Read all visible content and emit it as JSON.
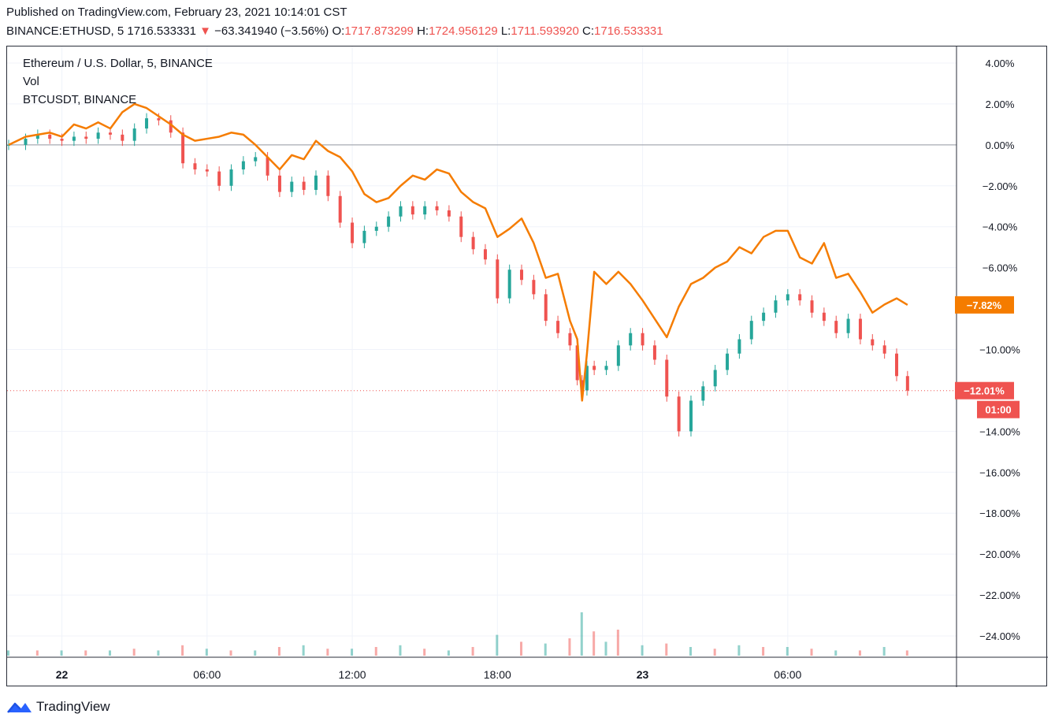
{
  "header": {
    "published": "Published on TradingView.com, February 23, 2021 10:14:01 CST",
    "symbol": "BINANCE:ETHUSD, 5",
    "last": "1716.533331",
    "change": "−63.341940 (−3.56%)",
    "o_label": "O:",
    "o_value": "1717.873299",
    "h_label": "H:",
    "h_value": "1724.956129",
    "l_label": "L:",
    "l_value": "1711.593920",
    "c_label": "C:",
    "c_value": "1716.533331"
  },
  "legend": {
    "main": "Ethereum / U.S. Dollar, 5, BINANCE",
    "vol": "Vol",
    "compare": "BTCUSDT, BINANCE"
  },
  "footer": {
    "brand": "TradingView"
  },
  "colors": {
    "up": "#26a69a",
    "down": "#ef5350",
    "compare_line": "#f57c00",
    "grid": "#f0f3fa",
    "axis_text": "#131722"
  },
  "chart_data": {
    "type": "candlestick",
    "y_unit": "%",
    "ylim": [
      -24.5,
      4.5
    ],
    "y_ticks": [
      "4.00%",
      "2.00%",
      "0.00%",
      "−2.00%",
      "−4.00%",
      "−6.00%",
      "−10.00%",
      "−14.00%",
      "−16.00%",
      "−18.00%",
      "−20.00%",
      "−22.00%",
      "−24.00%"
    ],
    "y_tick_values": [
      4,
      2,
      0,
      -2,
      -4,
      -6,
      -10,
      -14,
      -16,
      -18,
      -20,
      -22,
      -24
    ],
    "x_ticks": [
      "22",
      "06:00",
      "12:00",
      "18:00",
      "23",
      "06:00"
    ],
    "x_tick_hours": [
      0,
      6,
      12,
      18,
      24,
      30
    ],
    "x_range_hours": [
      -2.2,
      35.9
    ],
    "last_hour": 34.95,
    "labels": {
      "eth_last": "−12.01%",
      "countdown": "01:00",
      "btc_last": "−7.82%"
    },
    "series": [
      {
        "name": "Ethereum / U.S. Dollar, 5, BINANCE",
        "kind": "candles",
        "hours": [
          -2.2,
          -1.5,
          -1.0,
          -0.5,
          0.0,
          0.5,
          1.0,
          1.5,
          2.0,
          2.5,
          3.0,
          3.5,
          4.0,
          4.5,
          5.0,
          5.5,
          6.0,
          6.5,
          7.0,
          7.5,
          8.0,
          8.5,
          9.0,
          9.5,
          10.0,
          10.5,
          11.0,
          11.5,
          12.0,
          12.5,
          13.0,
          13.5,
          14.0,
          14.5,
          15.0,
          15.5,
          16.0,
          16.5,
          17.0,
          17.5,
          18.0,
          18.5,
          19.0,
          19.5,
          20.0,
          20.5,
          21.0,
          21.3,
          21.5,
          21.7,
          22.0,
          22.5,
          23.0,
          23.5,
          24.0,
          24.5,
          25.0,
          25.5,
          26.0,
          26.5,
          27.0,
          27.5,
          28.0,
          28.5,
          29.0,
          29.5,
          30.0,
          30.5,
          31.0,
          31.5,
          32.0,
          32.5,
          33.0,
          33.5,
          34.0,
          34.5,
          34.95
        ],
        "values": [
          0.0,
          0.3,
          0.5,
          0.3,
          0.2,
          0.4,
          0.3,
          0.6,
          0.5,
          0.2,
          0.8,
          1.3,
          1.2,
          0.6,
          -0.9,
          -1.2,
          -1.3,
          -2.0,
          -1.2,
          -0.8,
          -0.6,
          -1.5,
          -2.3,
          -1.8,
          -2.2,
          -1.5,
          -2.5,
          -3.8,
          -4.8,
          -4.2,
          -4.0,
          -3.5,
          -3.0,
          -3.4,
          -3.0,
          -3.2,
          -3.5,
          -4.5,
          -5.1,
          -5.6,
          -7.5,
          -6.1,
          -6.6,
          -7.3,
          -8.6,
          -9.2,
          -9.8,
          -11.5,
          -12.0,
          -10.8,
          -11.0,
          -10.8,
          -9.8,
          -9.2,
          -9.8,
          -10.5,
          -12.3,
          -14.0,
          -12.5,
          -11.8,
          -11.0,
          -10.2,
          -9.5,
          -8.6,
          -8.2,
          -7.6,
          -7.3,
          -7.6,
          -8.2,
          -8.6,
          -9.2,
          -8.5,
          -9.5,
          -9.8,
          -10.2,
          -11.3,
          -12.01
        ]
      },
      {
        "name": "BTCUSDT, BINANCE",
        "kind": "line",
        "hours": [
          -2.2,
          -1.5,
          -1.0,
          -0.5,
          0.0,
          0.5,
          1.0,
          1.5,
          2.0,
          2.5,
          3.0,
          3.5,
          4.0,
          4.5,
          5.0,
          5.5,
          6.0,
          6.5,
          7.0,
          7.5,
          8.0,
          8.5,
          9.0,
          9.5,
          10.0,
          10.5,
          11.0,
          11.5,
          12.0,
          12.5,
          13.0,
          13.5,
          14.0,
          14.5,
          15.0,
          15.5,
          16.0,
          16.5,
          17.0,
          17.5,
          18.0,
          18.5,
          19.0,
          19.5,
          20.0,
          20.5,
          21.0,
          21.3,
          21.5,
          21.7,
          22.0,
          22.5,
          23.0,
          23.5,
          24.0,
          24.5,
          25.0,
          25.5,
          26.0,
          26.5,
          27.0,
          27.5,
          28.0,
          28.5,
          29.0,
          29.5,
          30.0,
          30.5,
          31.0,
          31.5,
          32.0,
          32.5,
          33.0,
          33.5,
          34.0,
          34.5,
          34.95
        ],
        "values": [
          0.0,
          0.4,
          0.5,
          0.6,
          0.4,
          1.0,
          0.8,
          1.1,
          0.8,
          1.6,
          2.0,
          1.8,
          1.4,
          1.0,
          0.5,
          0.2,
          0.3,
          0.4,
          0.6,
          0.5,
          0.0,
          -0.6,
          -1.2,
          -0.5,
          -0.7,
          0.2,
          -0.3,
          -0.6,
          -1.3,
          -2.4,
          -2.8,
          -2.6,
          -2.0,
          -1.5,
          -1.7,
          -1.2,
          -1.4,
          -2.3,
          -2.8,
          -3.1,
          -4.5,
          -4.1,
          -3.6,
          -4.8,
          -6.5,
          -6.3,
          -8.6,
          -9.5,
          -12.5,
          -10.2,
          -6.2,
          -6.8,
          -6.2,
          -6.8,
          -7.6,
          -8.5,
          -9.4,
          -7.9,
          -6.8,
          -6.5,
          -6.0,
          -5.7,
          -5.0,
          -5.3,
          -4.5,
          -4.2,
          -4.2,
          -5.5,
          -5.8,
          -4.8,
          -6.5,
          -6.3,
          -7.2,
          -8.2,
          -7.8,
          -7.5,
          -7.82
        ]
      },
      {
        "name": "Vol",
        "kind": "volume",
        "hours": [
          -2.2,
          -1.0,
          0.0,
          1.0,
          2.0,
          3.0,
          4.0,
          5.0,
          6.0,
          7.0,
          8.0,
          9.0,
          10.0,
          11.0,
          12.0,
          13.0,
          14.0,
          15.0,
          16.0,
          17.0,
          18.0,
          19.0,
          20.0,
          21.0,
          21.5,
          22.0,
          22.5,
          23.0,
          24.0,
          25.0,
          26.0,
          27.0,
          28.0,
          29.0,
          30.0,
          31.0,
          32.0,
          33.0,
          34.0,
          34.95
        ],
        "values": [
          0.3,
          0.3,
          0.3,
          0.3,
          0.3,
          0.4,
          0.3,
          0.6,
          0.4,
          0.3,
          0.3,
          0.5,
          0.6,
          0.4,
          0.4,
          0.5,
          0.6,
          0.4,
          0.3,
          0.5,
          1.2,
          0.8,
          0.7,
          1.0,
          2.5,
          1.4,
          0.8,
          1.5,
          0.6,
          0.7,
          0.5,
          0.4,
          0.6,
          0.5,
          0.5,
          0.4,
          0.3,
          0.3,
          0.5,
          0.3
        ]
      }
    ]
  }
}
